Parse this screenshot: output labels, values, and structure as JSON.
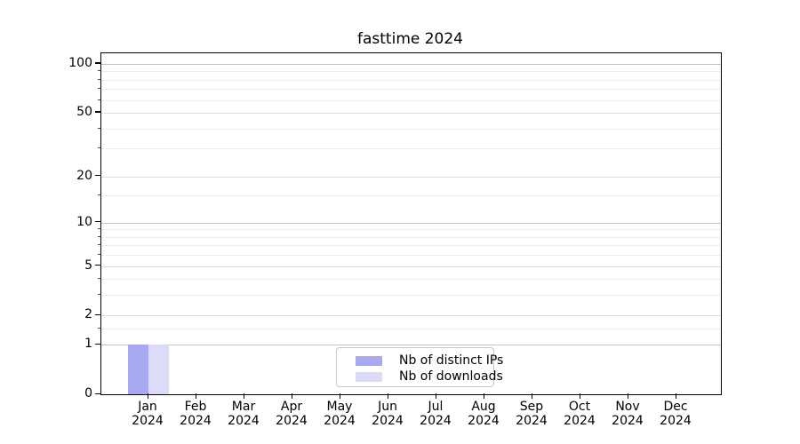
{
  "title": "fasttime 2024",
  "chart_data": {
    "type": "bar",
    "title": "fasttime 2024",
    "categories": [
      "Jan",
      "Feb",
      "Mar",
      "Apr",
      "May",
      "Jun",
      "Jul",
      "Aug",
      "Sep",
      "Oct",
      "Nov",
      "Dec"
    ],
    "year_label": "2024",
    "series": [
      {
        "name": "Nb of distinct IPs",
        "color": "#a9a9f3",
        "values": [
          1,
          0,
          0,
          0,
          0,
          0,
          0,
          0,
          0,
          0,
          0,
          0
        ]
      },
      {
        "name": "Nb of downloads",
        "color": "#dcdcf8",
        "values": [
          1,
          0,
          0,
          0,
          0,
          0,
          0,
          0,
          0,
          0,
          0,
          0
        ]
      }
    ],
    "y_axis": {
      "scale": "log1p",
      "tick_labels": [
        "0",
        "1",
        "2",
        "5",
        "10",
        "20",
        "50",
        "100"
      ],
      "ticks": [
        0,
        1,
        2,
        5,
        10,
        20,
        50,
        100
      ],
      "minor_ticks": [
        1.5,
        3,
        4,
        6,
        7,
        8,
        9,
        15,
        30,
        40,
        60,
        70,
        80,
        90
      ],
      "ylim": [
        0,
        116
      ]
    },
    "x_axis": {
      "tick_count": 12
    },
    "grid": "horizontal",
    "legend_position": "inside-bottom-center",
    "colors": {
      "grid_major": "#c3c3c3",
      "grid_labeled": "#dddddd",
      "grid_minor": "#ededed",
      "axis": "#000000",
      "background": "#ffffff"
    }
  },
  "legend": {
    "items": [
      {
        "label": "Nb of distinct IPs",
        "color": "#a9a9f3"
      },
      {
        "label": "Nb of downloads",
        "color": "#dcdcf8"
      }
    ]
  }
}
